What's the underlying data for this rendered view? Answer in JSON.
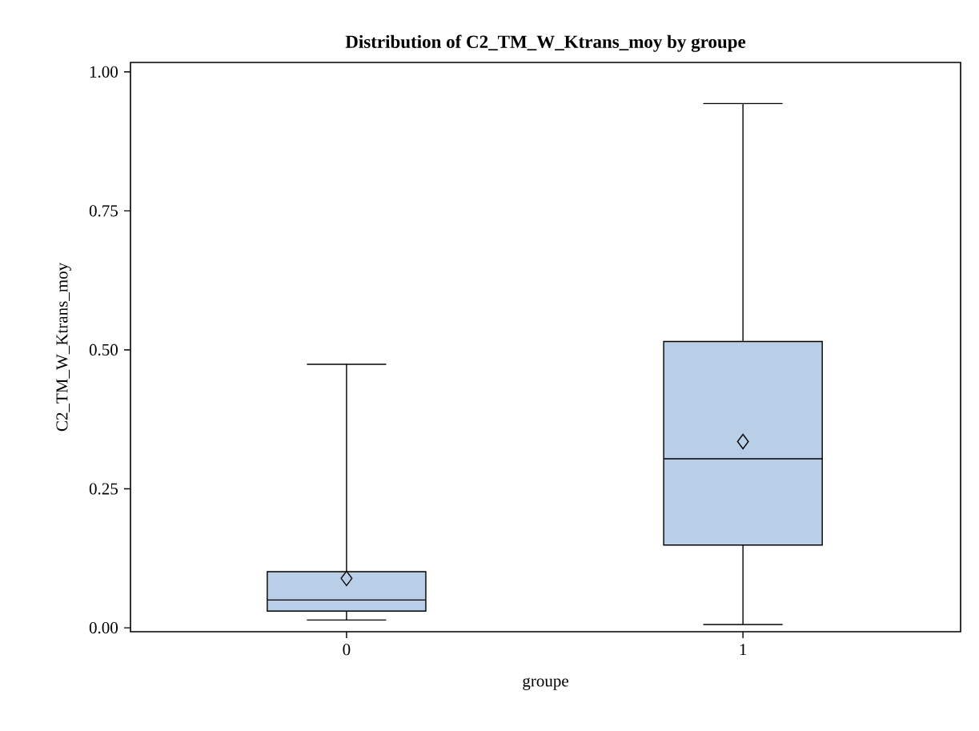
{
  "chart_data": {
    "type": "box",
    "title": "Distribution of C2_TM_W_Ktrans_moy by groupe",
    "xlabel": "groupe",
    "ylabel": "C2_TM_W_Ktrans_moy",
    "categories": [
      "0",
      "1"
    ],
    "color": "#b9cfe7",
    "boxes": [
      {
        "low": 0.014,
        "q1": 0.03,
        "median": 0.05,
        "q3": 0.101,
        "high": 0.474,
        "mean": 0.089
      },
      {
        "low": 0.006,
        "q1": 0.149,
        "median": 0.304,
        "q3": 0.515,
        "high": 0.943,
        "mean": 0.335
      }
    ],
    "ylim": [
      -0.007,
      1.017
    ],
    "yticks": [
      {
        "value": 0,
        "label": "0.00"
      },
      {
        "value": 0.25,
        "label": "0.25"
      },
      {
        "value": 0.5,
        "label": "0.50"
      },
      {
        "value": 0.75,
        "label": "0.75"
      },
      {
        "value": 1,
        "label": "1.00"
      }
    ]
  }
}
